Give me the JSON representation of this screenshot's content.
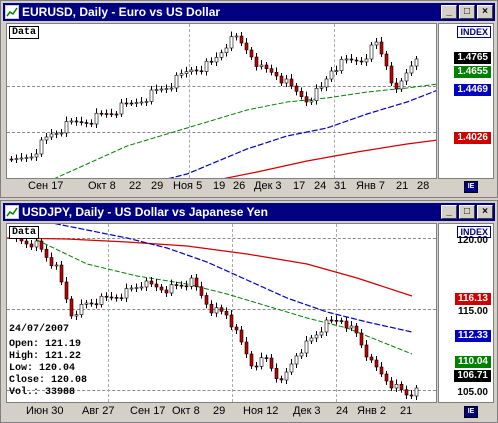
{
  "win1": {
    "title": "EURUSD, Daily - Euro vs US Dollar",
    "data_label": "Data",
    "index_label": "INDEX",
    "prices": [
      "1.4765",
      "1.4655",
      "1.4469",
      "1.4026"
    ],
    "x_labels": [
      "Сен 17",
      "Окт 8",
      "22",
      "29",
      "Ноя 5",
      "19",
      "26",
      "Дек 3",
      "17",
      "24",
      "31",
      "Янв 7",
      "21",
      "28"
    ]
  },
  "win2": {
    "title": "USDJPY, Daily - US Dollar vs Japanese Yen",
    "data_label": "Data",
    "index_label": "INDEX",
    "prices": [
      "116.13",
      "112.33",
      "110.04",
      "106.71"
    ],
    "y_ticks": [
      "120.00",
      "115.00",
      "105.00"
    ],
    "x_labels": [
      "Июн 30",
      "Авг 27",
      "Сен 17",
      "Окт 8",
      "29",
      "Ноя 12",
      "Дек 3",
      "24",
      "Янв 2",
      "21"
    ],
    "info": {
      "date": "24/07/2007",
      "open": "Open: 121.19",
      "high": "High: 121.22",
      "low": "Low: 120.04",
      "close": "Close: 120.08",
      "vol": "Vol.: 33988"
    }
  },
  "colors": {
    "titlebar": "#000080",
    "up_candle": "#ffffff",
    "down_candle": "#c00000",
    "ma_green": "#008000",
    "ma_blue": "#0000c0",
    "ma_red": "#d00000"
  }
}
